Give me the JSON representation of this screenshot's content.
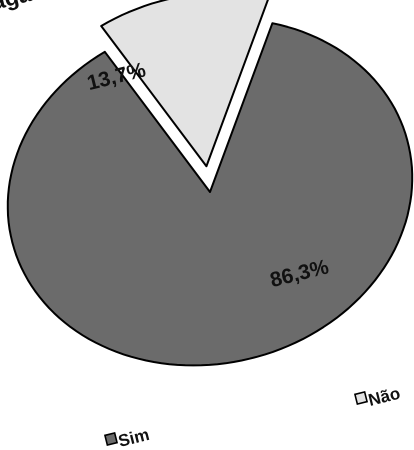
{
  "chart_data": {
    "type": "pie",
    "title": "agame",
    "slices": [
      {
        "label": "Sim",
        "value": 86.3,
        "display": "86,3%",
        "color": "#6b6b6b",
        "exploded": false
      },
      {
        "label": "Não",
        "value": 13.7,
        "display": "13,7%",
        "color": "#e3e3e3",
        "exploded": true
      }
    ],
    "legend": {
      "placement": "bottom"
    }
  }
}
